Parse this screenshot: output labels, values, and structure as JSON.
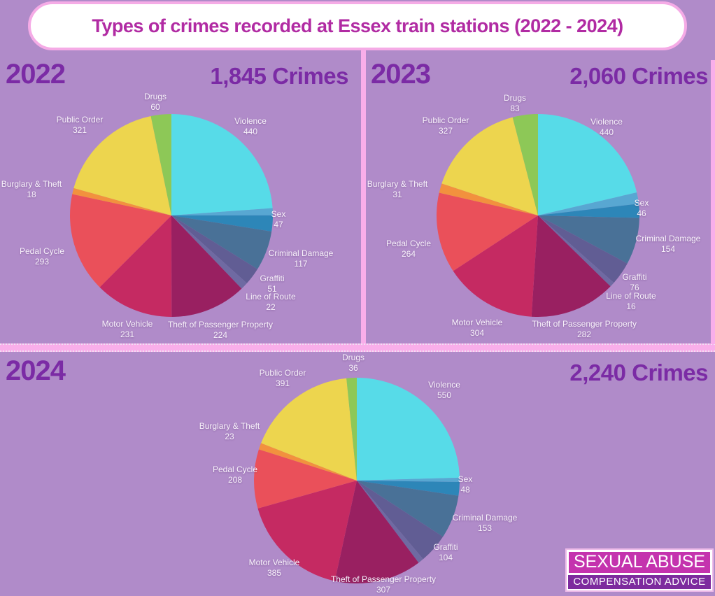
{
  "title": "Types of crimes recorded at Essex train stations (2022 - 2024)",
  "panels": [
    {
      "year": "2022",
      "total": "1,845 Crimes"
    },
    {
      "year": "2023",
      "total": "2,060 Crimes"
    },
    {
      "year": "2024",
      "total": "2,240 Crimes"
    }
  ],
  "logo": {
    "line1": "SEXUAL ABUSE",
    "line2": "COMPENSATION ADVICE"
  },
  "colors": {
    "background": "#b08bc9",
    "divider_pink": "#f9aeea",
    "title_text": "#b12ba3",
    "heading_text": "#7b2ba5",
    "label_text": "#f8f2fb",
    "slices": {
      "violence": "#57dbe8",
      "unlabeled": "#58a7d2",
      "sex": "#2d86b8",
      "criminal_damage": "#497197",
      "graffiti": "#615d94",
      "line_of_route": "#6f6aa2",
      "theft_of_passenger_property": "#992061",
      "motor_vehicle": "#c52a62",
      "pedal_cycle": "#ea505a",
      "burglary_theft": "#f2913e",
      "public_order": "#edd54e",
      "drugs": "#8dc857"
    }
  },
  "chart_data": [
    {
      "type": "pie",
      "year": "2022",
      "title": "Types of crimes recorded at Essex train stations 2022",
      "total_crimes": 1845,
      "slices": [
        {
          "id": "violence",
          "label": "Violence",
          "value": 440
        },
        {
          "id": "unlabeled",
          "label": "",
          "value": 21,
          "estimated": true
        },
        {
          "id": "sex",
          "label": "Sex",
          "value": 47
        },
        {
          "id": "criminal_damage",
          "label": "Criminal Damage",
          "value": 117
        },
        {
          "id": "graffiti",
          "label": "Graffiti",
          "value": 51
        },
        {
          "id": "line_of_route",
          "label": "Line of Route",
          "value": 22
        },
        {
          "id": "theft_of_passenger_property",
          "label": "Theft of Passenger Property",
          "value": 224
        },
        {
          "id": "motor_vehicle",
          "label": "Motor Vehicle",
          "value": 231
        },
        {
          "id": "pedal_cycle",
          "label": "Pedal Cycle",
          "value": 293
        },
        {
          "id": "burglary_theft",
          "label": "Burglary & Theft",
          "value": 18
        },
        {
          "id": "public_order",
          "label": "Public Order",
          "value": 321
        },
        {
          "id": "drugs",
          "label": "Drugs",
          "value": 60
        }
      ]
    },
    {
      "type": "pie",
      "year": "2023",
      "title": "Types of crimes recorded at Essex train stations 2023",
      "total_crimes": 2060,
      "slices": [
        {
          "id": "violence",
          "label": "Violence",
          "value": 440
        },
        {
          "id": "unlabeled",
          "label": "",
          "value": 37,
          "estimated": true
        },
        {
          "id": "sex",
          "label": "Sex",
          "value": 46
        },
        {
          "id": "criminal_damage",
          "label": "Criminal Damage",
          "value": 154
        },
        {
          "id": "graffiti",
          "label": "Graffiti",
          "value": 76
        },
        {
          "id": "line_of_route",
          "label": "Line of Route",
          "value": 16
        },
        {
          "id": "theft_of_passenger_property",
          "label": "Theft of Passenger Property",
          "value": 282
        },
        {
          "id": "motor_vehicle",
          "label": "Motor Vehicle",
          "value": 304
        },
        {
          "id": "pedal_cycle",
          "label": "Pedal Cycle",
          "value": 264
        },
        {
          "id": "burglary_theft",
          "label": "Burglary & Theft",
          "value": 31
        },
        {
          "id": "public_order",
          "label": "Public Order",
          "value": 327
        },
        {
          "id": "drugs",
          "label": "Drugs",
          "value": 83
        }
      ]
    },
    {
      "type": "pie",
      "year": "2024",
      "title": "Types of crimes recorded at Essex train stations 2024",
      "total_crimes": 2240,
      "slices": [
        {
          "id": "violence",
          "label": "Violence",
          "value": 550
        },
        {
          "id": "unlabeled",
          "label": "",
          "value": 15,
          "estimated": true
        },
        {
          "id": "sex",
          "label": "Sex",
          "value": 48
        },
        {
          "id": "criminal_damage",
          "label": "Criminal Damage",
          "value": 153
        },
        {
          "id": "graffiti",
          "label": "Graffiti",
          "value": 104
        },
        {
          "id": "line_of_route",
          "label": "",
          "value": 20,
          "estimated": true
        },
        {
          "id": "theft_of_passenger_property",
          "label": "Theft of Passenger Property",
          "value": 307
        },
        {
          "id": "motor_vehicle",
          "label": "Motor Vehicle",
          "value": 385
        },
        {
          "id": "pedal_cycle",
          "label": "Pedal Cycle",
          "value": 208
        },
        {
          "id": "burglary_theft",
          "label": "Burglary & Theft",
          "value": 23
        },
        {
          "id": "public_order",
          "label": "Public Order",
          "value": 391
        },
        {
          "id": "drugs",
          "label": "Drugs",
          "value": 36
        }
      ]
    }
  ]
}
